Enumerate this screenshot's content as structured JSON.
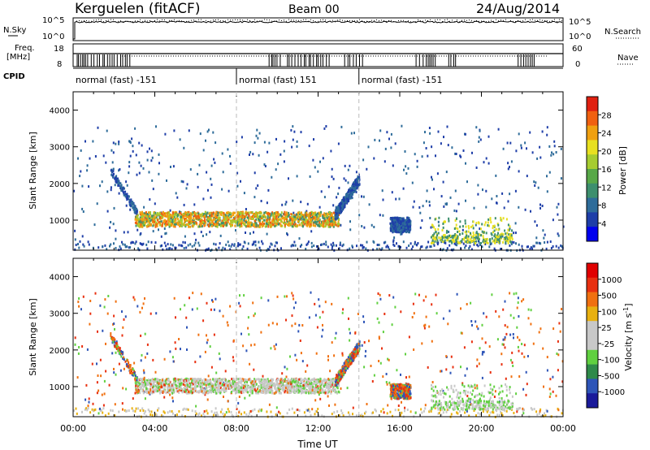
{
  "header": {
    "station": "Kerguelen (fitACF)",
    "beam": "Beam 00",
    "date": "24/Aug/2014"
  },
  "top_panels": {
    "left_labels": {
      "nsky": "N.Sky",
      "freq": "Freq.",
      "freq_unit": "[MHz]",
      "cpid": "CPID"
    },
    "right_labels": {
      "nsearch": "N.Search",
      "nave": "Nave"
    },
    "noise_ticks": {
      "upper": "10^5",
      "lower": "10^0"
    },
    "freq_ticks": {
      "upper": "18",
      "lower": "8"
    },
    "nave_ticks": {
      "upper": "60",
      "lower": "0"
    }
  },
  "cpid_segments": [
    {
      "label": "normal (fast) -151",
      "start_hour": 0.0,
      "end_hour": 8.0
    },
    {
      "label": "normal (fast) 151",
      "start_hour": 8.0,
      "end_hour": 14.0
    },
    {
      "label": "normal (fast) -151",
      "start_hour": 14.0,
      "end_hour": 24.0
    }
  ],
  "x_axis": {
    "ticks": [
      "00:00",
      "04:00",
      "08:00",
      "12:00",
      "16:00",
      "20:00",
      "00:00"
    ],
    "label": "Time UT",
    "range_hours": [
      0,
      24
    ],
    "dashed_markers_hours": [
      8,
      14
    ]
  },
  "power_panel": {
    "ylabel": "Slant Range [km]",
    "yticks": [
      "1000",
      "2000",
      "3000",
      "4000"
    ],
    "colorbar_label": "Power [dB]",
    "colorbar_ticks": [
      "28",
      "24",
      "20",
      "16",
      "12",
      "8",
      "4"
    ],
    "colors": [
      "#0000ee",
      "#1e3ea8",
      "#2e6c9a",
      "#3d8f6e",
      "#58a848",
      "#a6cc30",
      "#e8e020",
      "#f0a010",
      "#f06010",
      "#e02010"
    ]
  },
  "velocity_panel": {
    "ylabel": "Slant Range [km]",
    "yticks": [
      "1000",
      "2000",
      "3000",
      "4000"
    ],
    "colorbar_label": "Velocity [m s^-1]",
    "colorbar_ticks": [
      "1000",
      "500",
      "100",
      "25",
      "-25",
      "-100",
      "-500",
      "-1000"
    ],
    "colors": [
      "#1a1a9a",
      "#2e55b8",
      "#2f8a4a",
      "#60d040",
      "#c8c8c8",
      "#c8c8c8",
      "#e8b010",
      "#f07010",
      "#e83010",
      "#e00000"
    ]
  },
  "chart_data": {
    "type": "heatmap",
    "x_range_hours": [
      0,
      24
    ],
    "y_range_km": [
      180,
      4500
    ],
    "backscatter_bands": [
      {
        "name": "main band",
        "start_hour": 3.0,
        "end_hour": 13.0,
        "range_km": [
          850,
          1250
        ]
      },
      {
        "name": "rising arc",
        "start_hour": 12.8,
        "end_hour": 14.0,
        "range_km": [
          1000,
          2300
        ]
      },
      {
        "name": "afternoon patch",
        "start_hour": 15.5,
        "end_hour": 16.5,
        "range_km": [
          700,
          1100
        ]
      },
      {
        "name": "evening band",
        "start_hour": 17.5,
        "end_hour": 21.5,
        "range_km": [
          400,
          1100
        ]
      }
    ]
  }
}
